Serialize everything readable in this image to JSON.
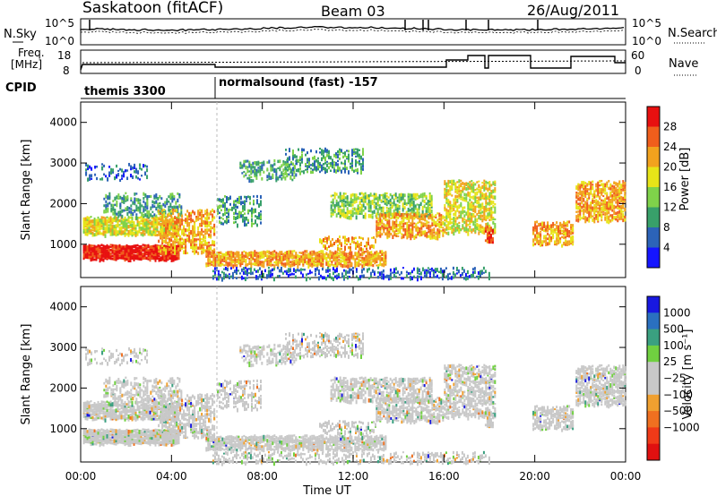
{
  "header": {
    "station": "Saskatoon (fitACF)",
    "beam": "Beam 03",
    "date": "26/Aug/2011"
  },
  "top_strip": {
    "left_label": "N.Sky",
    "right_label": "N.Search",
    "tick_top": "10^5",
    "tick_bottom": "10^0"
  },
  "freq_strip": {
    "left_label_1": "Freq.",
    "left_label_2": "[MHz]",
    "left_tick_top": "18",
    "left_tick_bottom": "8",
    "right_label": "Nave",
    "right_tick_top": "60",
    "right_tick_bottom": "0"
  },
  "cpid": {
    "label": "CPID",
    "segments": [
      {
        "start_hour": 0,
        "name": "themis 3300"
      },
      {
        "start_hour": 6,
        "name": "normalsound (fast) -157"
      }
    ]
  },
  "chart_data": [
    {
      "type": "heatmap",
      "parameter": "power",
      "ylabel": "Slant Range [km]",
      "ylim": [
        180,
        4500
      ],
      "yticks": [
        1000,
        2000,
        3000,
        4000
      ],
      "xlim": [
        0,
        24
      ],
      "colorbar": {
        "label": "Power [dB]",
        "ticks": [
          "4",
          "8",
          "12",
          "16",
          "20",
          "24",
          "28"
        ],
        "colors": [
          "#1515ff",
          "#2c63b8",
          "#38a06a",
          "#7fd24a",
          "#e7e418",
          "#f2a21e",
          "#f05e1c",
          "#e81010"
        ]
      }
    },
    {
      "type": "heatmap",
      "parameter": "velocity",
      "ylabel": "Slant Range [km]",
      "ylim": [
        180,
        4500
      ],
      "yticks": [
        1000,
        2000,
        3000,
        4000
      ],
      "xlim": [
        0,
        24
      ],
      "xlabel": "Time UT",
      "xticks": [
        "00:00",
        "04:00",
        "08:00",
        "12:00",
        "16:00",
        "20:00",
        "00:00"
      ],
      "colorbar": {
        "label": "Velocity [m s⁻¹]",
        "ticks": [
          "1000",
          "500",
          "100",
          "25",
          "−25",
          "−100",
          "−500",
          "−1000"
        ],
        "colors": [
          "#1818e0",
          "#2a70c0",
          "#3aa080",
          "#70d040",
          "#c8c8c8",
          "#c8c8c8",
          "#f0a030",
          "#f07020",
          "#f03a18",
          "#e01010"
        ]
      }
    }
  ]
}
